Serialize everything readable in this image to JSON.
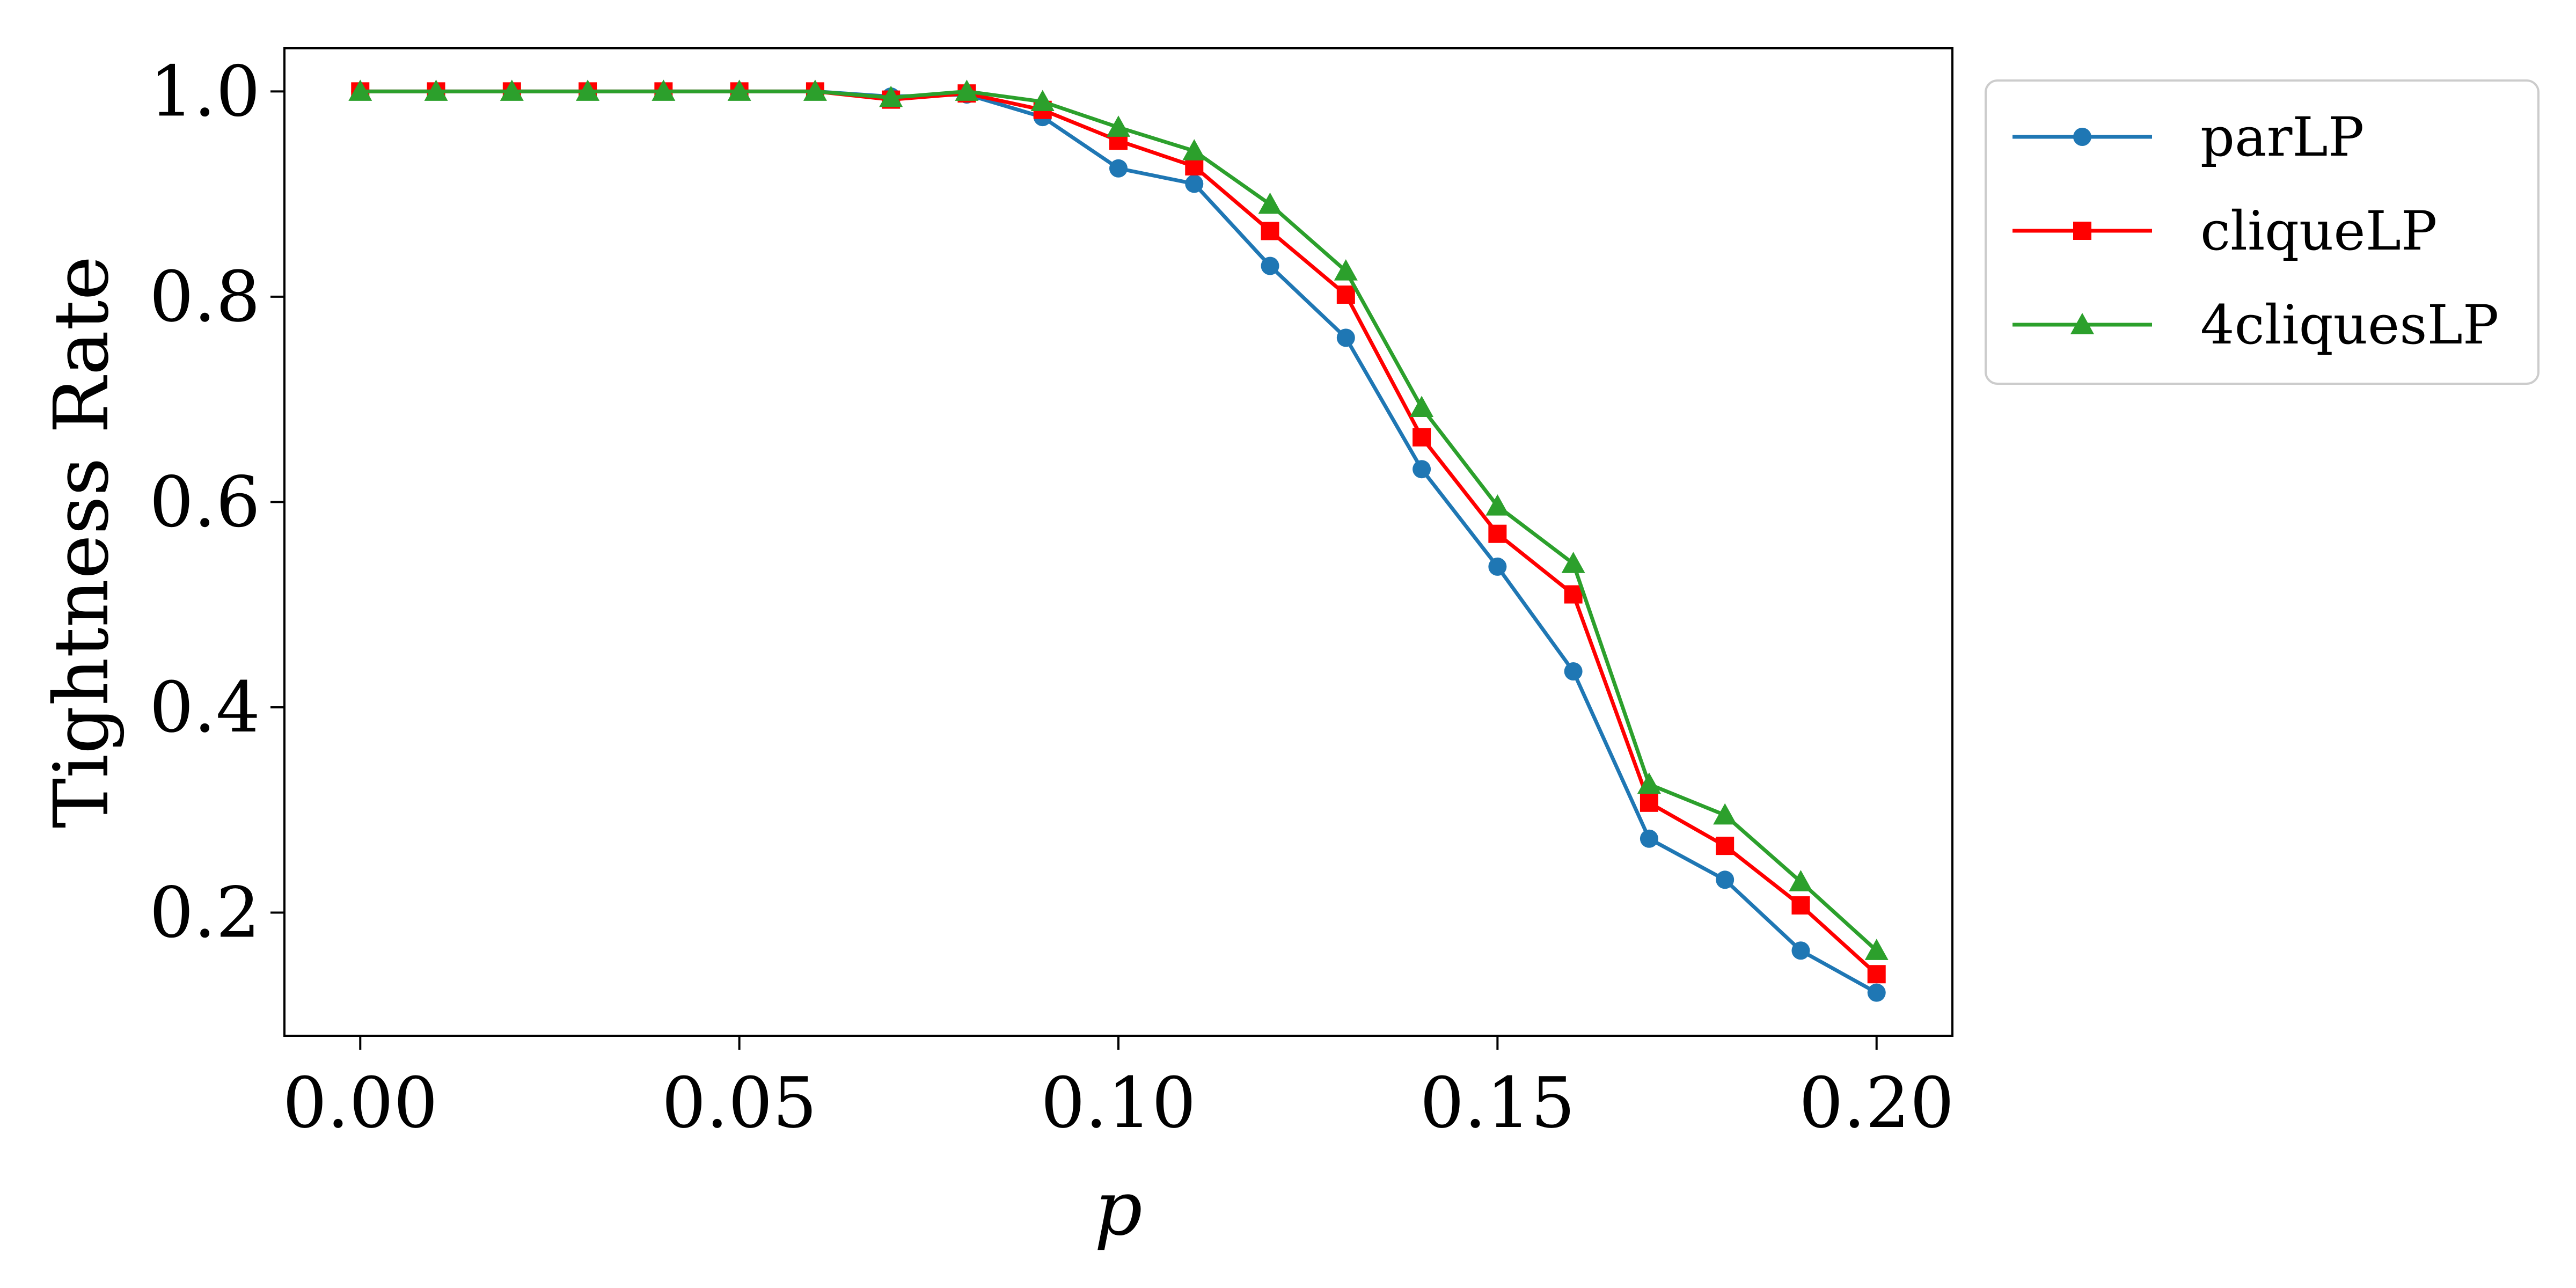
{
  "chart_data": {
    "type": "line",
    "title": "",
    "xlabel": "p",
    "ylabel": "Tightness Rate",
    "xlim": [
      -0.01,
      0.21
    ],
    "ylim": [
      0.08,
      1.042
    ],
    "x_ticks": [
      0.0,
      0.05,
      0.1,
      0.15,
      0.2
    ],
    "x_tick_labels": [
      "0.00",
      "0.05",
      "0.10",
      "0.15",
      "0.20"
    ],
    "y_ticks": [
      0.2,
      0.4,
      0.6,
      0.8,
      1.0
    ],
    "y_tick_labels": [
      "0.2",
      "0.4",
      "0.6",
      "0.8",
      "1.0"
    ],
    "grid": false,
    "legend_position": "outside-top-right",
    "x": [
      0.0,
      0.01,
      0.02,
      0.03,
      0.04,
      0.05,
      0.06,
      0.07,
      0.08,
      0.09,
      0.1,
      0.11,
      0.12,
      0.13,
      0.14,
      0.15,
      0.16,
      0.17,
      0.18,
      0.19,
      0.2
    ],
    "series": [
      {
        "name": "parLP",
        "color": "#1f77b4",
        "marker": "circle",
        "values": [
          1.0,
          1.0,
          1.0,
          1.0,
          1.0,
          1.0,
          1.0,
          0.995,
          0.997,
          0.975,
          0.925,
          0.91,
          0.83,
          0.76,
          0.632,
          0.537,
          0.435,
          0.272,
          0.232,
          0.163,
          0.122
        ]
      },
      {
        "name": "cliqueLP",
        "color": "#ff0000",
        "marker": "square",
        "values": [
          1.0,
          1.0,
          1.0,
          1.0,
          1.0,
          1.0,
          1.0,
          0.992,
          0.998,
          0.982,
          0.952,
          0.927,
          0.864,
          0.802,
          0.663,
          0.569,
          0.51,
          0.307,
          0.265,
          0.207,
          0.14
        ]
      },
      {
        "name": "4cliquesLP",
        "color": "#2ca02c",
        "marker": "triangle",
        "values": [
          1.0,
          1.0,
          1.0,
          1.0,
          1.0,
          1.0,
          1.0,
          0.994,
          1.0,
          0.99,
          0.965,
          0.942,
          0.89,
          0.825,
          0.692,
          0.596,
          0.54,
          0.325,
          0.295,
          0.23,
          0.163
        ]
      }
    ]
  }
}
